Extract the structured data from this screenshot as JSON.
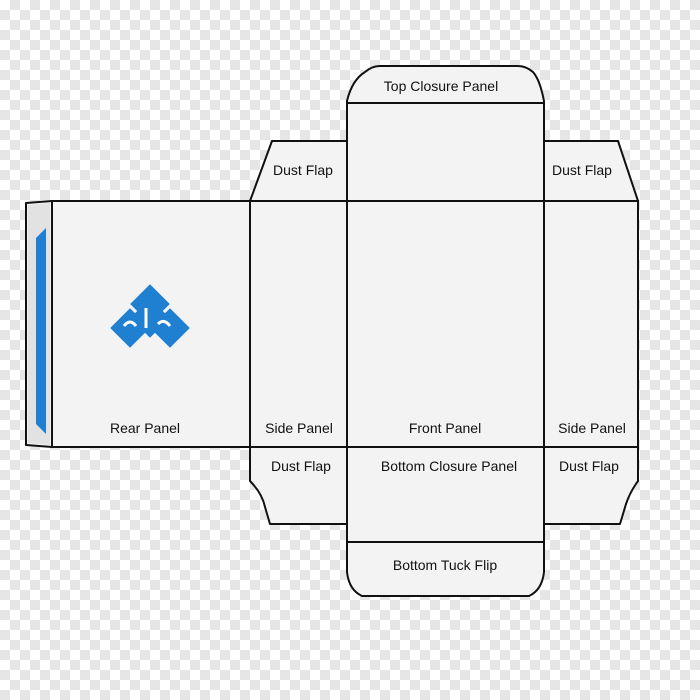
{
  "labels": {
    "top_closure_panel": "Top Closure Panel",
    "dust_flap_top_left": "Dust Flap",
    "dust_flap_top_right": "Dust Flap",
    "rear_panel": "Rear Panel",
    "side_panel_left": "Side Panel",
    "front_panel": "Front Panel",
    "side_panel_right": "Side Panel",
    "dust_flap_bottom_left": "Dust Flap",
    "bottom_closure_panel": "Bottom Closure Panel",
    "dust_flap_bottom_right": "Dust Flap",
    "bottom_tuck_flip": "Bottom Tuck Flip"
  },
  "colors": {
    "accent_blue": "#1f7fd0",
    "panel_fill": "#f3f3f3",
    "outline": "#111111",
    "checker": "#e6e6e6"
  },
  "logo": {
    "icon": "diamond-logo-icon"
  }
}
